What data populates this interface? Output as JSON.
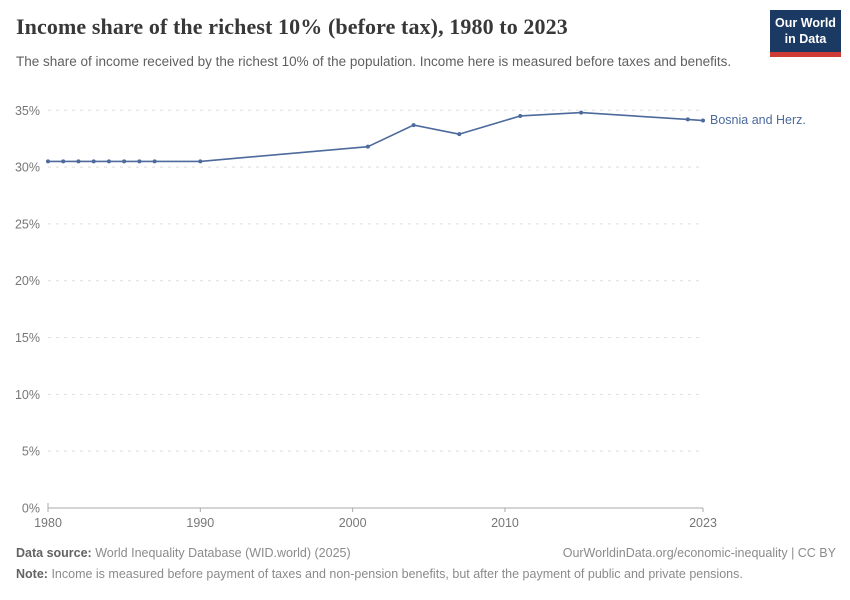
{
  "header": {
    "title": "Income share of the richest 10% (before tax), 1980 to 2023",
    "subtitle": "The share of income received by the richest 10% of the population. Income here is measured before taxes and benefits.",
    "logo": {
      "line1": "Our World",
      "line2": "in Data",
      "bg_color": "#1b3a63",
      "accent_color": "#cc3b34"
    }
  },
  "chart_data": {
    "type": "line",
    "title": "Income share of the richest 10% (before tax), 1980 to 2023",
    "xlabel": "",
    "ylabel": "",
    "xlim": [
      1980,
      2023
    ],
    "ylim": [
      0,
      35
    ],
    "x_ticks": [
      1980,
      1990,
      2000,
      2010,
      2023
    ],
    "y_ticks": [
      0,
      5,
      10,
      15,
      20,
      25,
      30,
      35
    ],
    "y_tick_suffix": "%",
    "grid": "horizontal-dashed",
    "legend_position": "end-of-line-label",
    "series": [
      {
        "name": "Bosnia and Herz.",
        "color": "#4c6a9c",
        "points": [
          {
            "year": 1980,
            "value": 30.5
          },
          {
            "year": 1981,
            "value": 30.5
          },
          {
            "year": 1982,
            "value": 30.5
          },
          {
            "year": 1983,
            "value": 30.5
          },
          {
            "year": 1984,
            "value": 30.5
          },
          {
            "year": 1985,
            "value": 30.5
          },
          {
            "year": 1986,
            "value": 30.5
          },
          {
            "year": 1987,
            "value": 30.5
          },
          {
            "year": 1990,
            "value": 30.5
          },
          {
            "year": 2001,
            "value": 31.8
          },
          {
            "year": 2004,
            "value": 33.7
          },
          {
            "year": 2007,
            "value": 32.9
          },
          {
            "year": 2011,
            "value": 34.5
          },
          {
            "year": 2015,
            "value": 34.8
          },
          {
            "year": 2022,
            "value": 34.2
          },
          {
            "year": 2023,
            "value": 34.1
          }
        ]
      }
    ]
  },
  "footer": {
    "data_source_label": "Data source:",
    "data_source": "World Inequality Database (WID.world) (2025)",
    "credit": "OurWorldinData.org/economic-inequality | CC BY",
    "note_label": "Note:",
    "note": "Income is measured before payment of taxes and non-pension benefits, but after the payment of public and private pensions."
  }
}
